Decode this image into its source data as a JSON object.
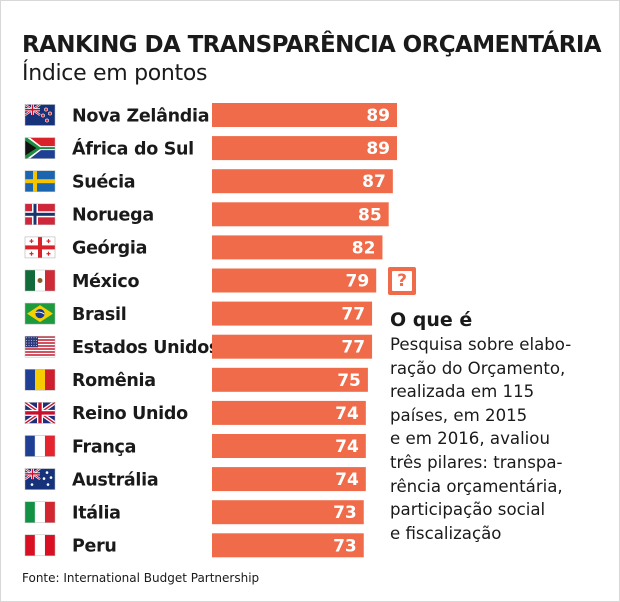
{
  "chart_data": {
    "type": "bar",
    "title": "RANKING DA TRANSPARÊNCIA ORÇAMENTÁRIA",
    "subtitle": "Índice em pontos",
    "categories": [
      "Nova Zelândia",
      "África do Sul",
      "Suécia",
      "Noruega",
      "Geórgia",
      "México",
      "Brasil",
      "Estados Unidos",
      "Romênia",
      "Reino Unido",
      "França",
      "Austrália",
      "Itália",
      "Peru"
    ],
    "values": [
      89,
      89,
      87,
      85,
      82,
      79,
      77,
      77,
      75,
      74,
      74,
      74,
      73,
      73
    ],
    "data_labels": [
      "89",
      "89",
      "87",
      "85",
      "82",
      "79",
      "77",
      "77",
      "75",
      "74",
      "74",
      "74",
      "73",
      "73"
    ],
    "flags": [
      "new-zealand-flag-icon",
      "south-africa-flag-icon",
      "sweden-flag-icon",
      "norway-flag-icon",
      "georgia-flag-icon",
      "mexico-flag-icon",
      "brazil-flag-icon",
      "united-states-flag-icon",
      "romania-flag-icon",
      "united-kingdom-flag-icon",
      "france-flag-icon",
      "australia-flag-icon",
      "italy-flag-icon",
      "peru-flag-icon"
    ],
    "orientation": "horizontal",
    "grid": false,
    "bar_color": "#ef6b4a"
  },
  "info": {
    "icon": "question-mark-icon",
    "heading": "O que é",
    "lines": [
      "Pesquisa sobre elabo-",
      "ração do Orçamento,",
      "realizada em 115",
      "países, em 2015",
      "e em 2016, avaliou",
      "três pilares: transpa-",
      "rência orçamentária,",
      "participação social",
      "e fiscalização"
    ]
  },
  "source": "Fonte: International Budget Partnership"
}
